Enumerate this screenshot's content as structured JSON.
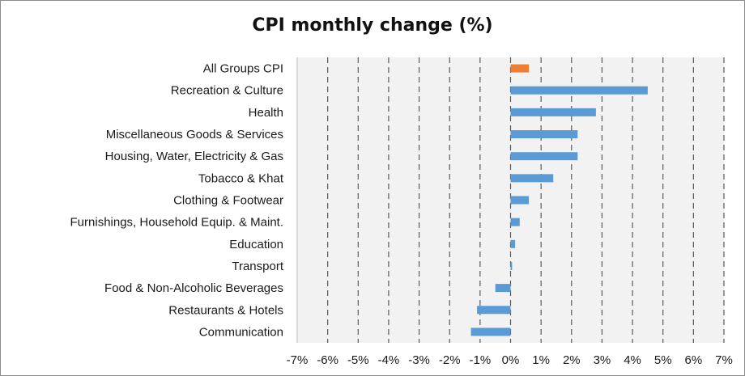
{
  "chart_data": {
    "type": "bar",
    "orientation": "horizontal",
    "title": "CPI monthly change (%)",
    "xlabel": "",
    "ylabel": "",
    "xlim": [
      -7,
      7
    ],
    "tick_step": 1,
    "tick_suffix": "%",
    "grid": "vertical dashed",
    "legend": "none",
    "categories": [
      "All Groups CPI",
      "Recreation & Culture",
      "Health",
      "Miscellaneous Goods & Services",
      "Housing, Water, Electricity & Gas",
      "Tobacco & Khat",
      "Clothing & Footwear",
      "Furnishings, Household Equip. & Maint.",
      "Education",
      "Transport",
      "Food & Non-Alcoholic Beverages",
      "Restaurants & Hotels",
      "Communication"
    ],
    "values": [
      0.6,
      4.5,
      2.8,
      2.2,
      2.2,
      1.4,
      0.6,
      0.3,
      0.15,
      0.05,
      -0.5,
      -1.1,
      -1.3
    ],
    "highlight": [
      true,
      false,
      false,
      false,
      false,
      false,
      false,
      false,
      false,
      false,
      false,
      false,
      false
    ],
    "colors": {
      "bar": "#5b9bd5",
      "highlight": "#ed7d31",
      "grid": "#595959",
      "plot_bg": "#f2f2f2"
    }
  }
}
